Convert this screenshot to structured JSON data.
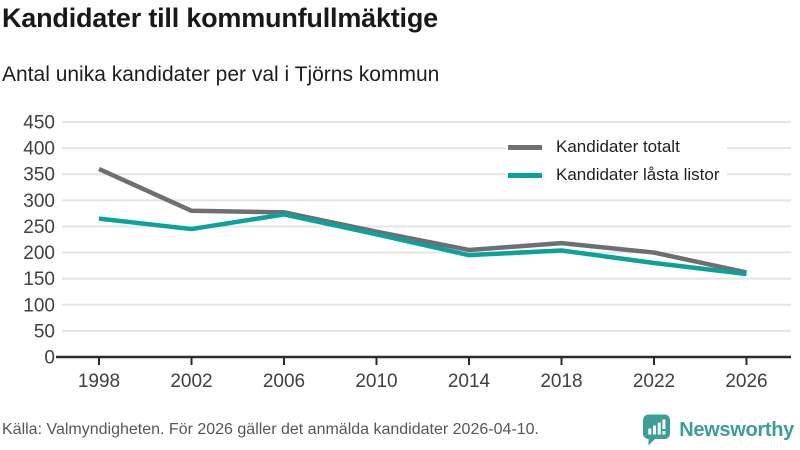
{
  "header": {
    "title": "Kandidater till kommunfullmäktige",
    "subtitle": "Antal unika kandidater per val i Tjörns kommun"
  },
  "chart_data": {
    "type": "line",
    "title": "Kandidater till kommunfullmäktige",
    "subtitle": "Antal unika kandidater per val i Tjörns kommun",
    "categories": [
      "1998",
      "2002",
      "2006",
      "2010",
      "2014",
      "2018",
      "2022",
      "2026"
    ],
    "series": [
      {
        "name": "Kandidater totalt",
        "color": "#6e6f72",
        "values": [
          360,
          280,
          277,
          240,
          205,
          218,
          200,
          162
        ]
      },
      {
        "name": "Kandidater låsta listor",
        "color": "#0aa29a",
        "values": [
          265,
          245,
          273,
          235,
          195,
          204,
          180,
          159
        ]
      }
    ],
    "ylim": [
      0,
      450
    ],
    "yticks": [
      0,
      50,
      100,
      150,
      200,
      250,
      300,
      350,
      400,
      450
    ],
    "grid": "horizontal",
    "legend_position": "top-right"
  },
  "footer": {
    "source": "Källa: Valmyndigheten. För 2026 gäller det anmälda kandidater 2026-04-10.",
    "brand": "Newsworthy"
  },
  "colors": {
    "gridline": "#e4e4e4",
    "axis": "#2b2b2b",
    "tick_text": "#404040",
    "logo_teal": "#3b9e99",
    "series_gray": "#6e6f72",
    "series_teal": "#0aa29a"
  }
}
